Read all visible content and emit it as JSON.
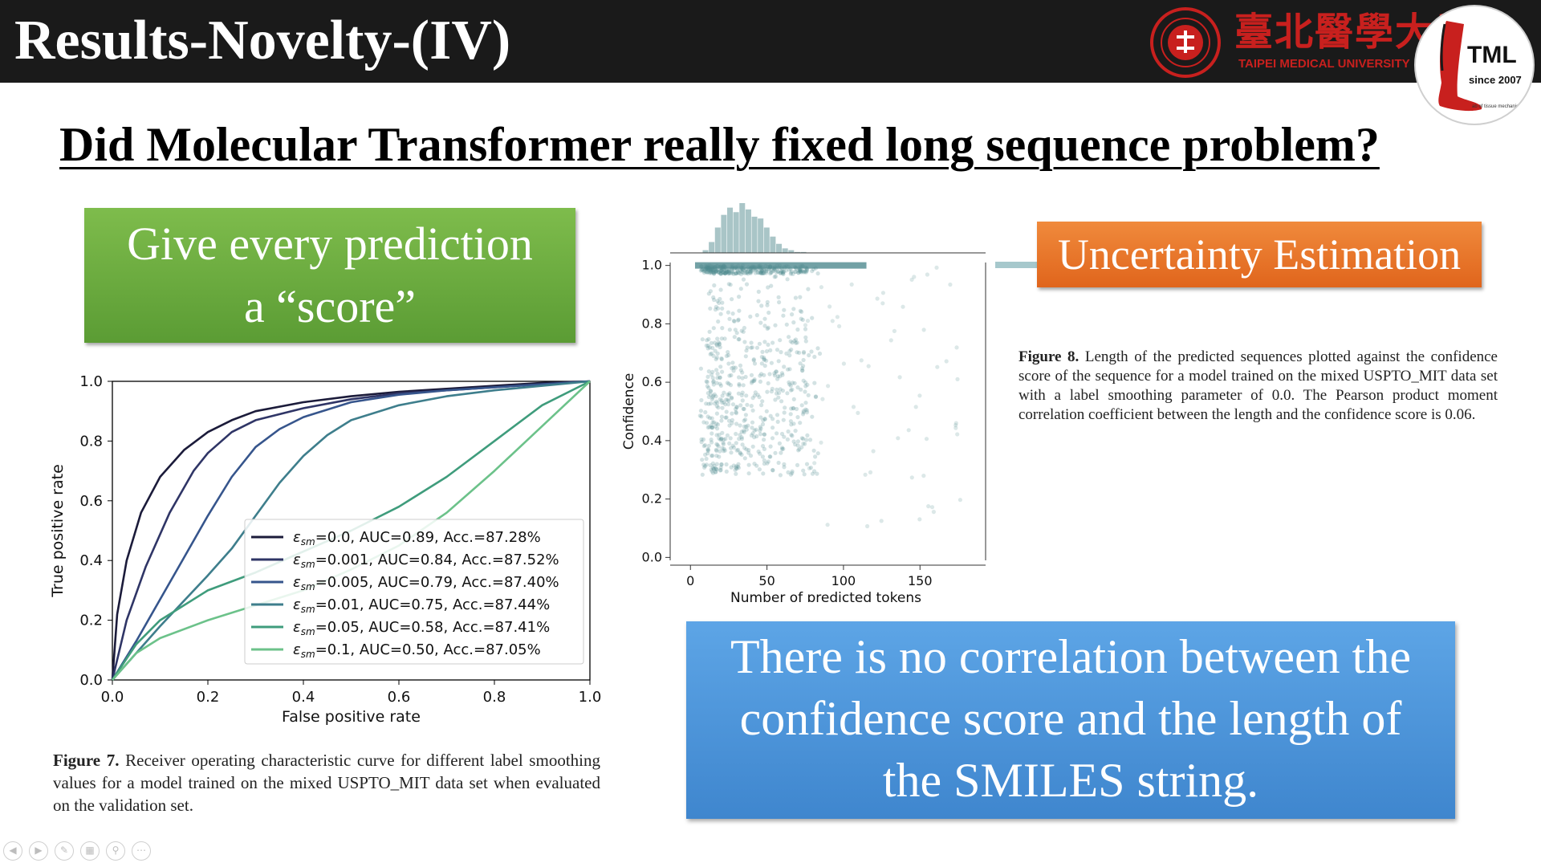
{
  "slide": {
    "title": "Results-Novelty-(IV)",
    "question": "Did Molecular Transformer really fixed long sequence problem?"
  },
  "logos": {
    "tmu_chinese": "臺北醫學大學",
    "tmu_english": "TAIPEI MEDICAL UNIVERSITY",
    "tml_name": "TML",
    "tml_since": "since 2007",
    "tml_small": "ab of tissue mechanics",
    "brand_red": "#c8201e"
  },
  "callouts": {
    "score_line1": "Give every prediction",
    "score_line2": "a “score”",
    "uncertainty": "Uncertainty Estimation",
    "conclusion_line1": "There is no correlation between the",
    "conclusion_line2": "confidence score and the length of",
    "conclusion_line3": "the SMILES string."
  },
  "captions": {
    "fig8_label": "Figure 8.",
    "fig8_text": "Length of the predicted sequences plotted against the confidence score of the sequence for a model trained on the mixed USPTO_MIT data set with a label smoothing parameter of 0.0. The Pearson product moment correlation coefficient between the length and the confidence score is 0.06.",
    "fig7_label": "Figure 7.",
    "fig7_text": "Receiver operating characteristic curve for different label smoothing values for a model trained on the mixed USPTO_MIT data set when evaluated on the validation set."
  },
  "nav_icons": [
    "back-icon",
    "forward-icon",
    "pen-icon",
    "slides-icon",
    "zoom-icon",
    "more-icon"
  ],
  "chart_data": [
    {
      "type": "line",
      "xlabel": "False positive rate",
      "ylabel": "True positive rate",
      "xlim": [
        0,
        1
      ],
      "ylim": [
        0,
        1
      ],
      "xticks": [
        "0.0",
        "0.2",
        "0.4",
        "0.6",
        "0.8",
        "1.0"
      ],
      "yticks": [
        "0.0",
        "0.2",
        "0.4",
        "0.6",
        "0.8",
        "1.0"
      ],
      "grid": false,
      "legend": "lower-right",
      "series": [
        {
          "name": "=0.0, AUC=0.89, Acc.=87.28%",
          "color": "#1b1b3a",
          "x": [
            0,
            0.01,
            0.03,
            0.06,
            0.1,
            0.15,
            0.2,
            0.25,
            0.3,
            0.4,
            0.5,
            0.6,
            0.7,
            0.8,
            0.9,
            1.0
          ],
          "y": [
            0,
            0.22,
            0.4,
            0.56,
            0.68,
            0.77,
            0.83,
            0.87,
            0.9,
            0.93,
            0.95,
            0.965,
            0.975,
            0.985,
            0.995,
            1.0
          ]
        },
        {
          "name": "=0.001, AUC=0.84, Acc.=87.52%",
          "color": "#2f3566",
          "x": [
            0,
            0.03,
            0.07,
            0.12,
            0.17,
            0.2,
            0.25,
            0.3,
            0.4,
            0.5,
            0.6,
            0.7,
            0.8,
            0.9,
            1.0
          ],
          "y": [
            0,
            0.2,
            0.38,
            0.56,
            0.7,
            0.76,
            0.83,
            0.87,
            0.91,
            0.94,
            0.96,
            0.97,
            0.98,
            0.99,
            1.0
          ]
        },
        {
          "name": "=0.005, AUC=0.79, Acc.=87.40%",
          "color": "#36558c",
          "x": [
            0,
            0.05,
            0.1,
            0.15,
            0.2,
            0.25,
            0.3,
            0.35,
            0.4,
            0.5,
            0.6,
            0.7,
            0.8,
            0.9,
            1.0
          ],
          "y": [
            0,
            0.13,
            0.27,
            0.41,
            0.55,
            0.68,
            0.78,
            0.84,
            0.88,
            0.93,
            0.955,
            0.97,
            0.98,
            0.99,
            1.0
          ]
        },
        {
          "name": "=0.01, AUC=0.75, Acc.=87.44%",
          "color": "#3e7e8c",
          "x": [
            0,
            0.05,
            0.1,
            0.2,
            0.25,
            0.3,
            0.35,
            0.4,
            0.45,
            0.5,
            0.6,
            0.7,
            0.8,
            0.9,
            1.0
          ],
          "y": [
            0,
            0.09,
            0.18,
            0.35,
            0.44,
            0.55,
            0.66,
            0.75,
            0.82,
            0.87,
            0.92,
            0.95,
            0.97,
            0.985,
            1.0
          ]
        },
        {
          "name": "=0.05, AUC=0.58, Acc.=87.41%",
          "color": "#3f9c7c",
          "x": [
            0,
            0.05,
            0.1,
            0.2,
            0.3,
            0.4,
            0.5,
            0.6,
            0.7,
            0.8,
            0.9,
            1.0
          ],
          "y": [
            0,
            0.12,
            0.2,
            0.3,
            0.36,
            0.43,
            0.5,
            0.58,
            0.68,
            0.8,
            0.92,
            1.0
          ]
        },
        {
          "name": "=0.1, AUC=0.50, Acc.=87.05%",
          "color": "#6cc28a",
          "x": [
            0,
            0.05,
            0.1,
            0.2,
            0.3,
            0.4,
            0.5,
            0.6,
            0.7,
            0.8,
            0.9,
            1.0
          ],
          "y": [
            0,
            0.09,
            0.14,
            0.2,
            0.25,
            0.3,
            0.37,
            0.45,
            0.56,
            0.7,
            0.85,
            1.0
          ]
        }
      ]
    },
    {
      "type": "scatter",
      "xlabel": "Number of predicted tokens",
      "ylabel": "Confidence",
      "xlim": [
        -8,
        185
      ],
      "ylim": [
        -0.01,
        1.01
      ],
      "xticks": [
        "0",
        "50",
        "100",
        "150"
      ],
      "yticks": [
        "0.0",
        "0.2",
        "0.4",
        "0.6",
        "0.8",
        "1.0"
      ],
      "color": "#4f8a8e",
      "histogram_x": {
        "bin_starts": [
          8,
          12,
          16,
          20,
          24,
          28,
          32,
          36,
          40,
          44,
          48,
          52,
          56,
          60,
          64,
          68,
          72
        ],
        "counts": [
          3,
          12,
          28,
          42,
          50,
          45,
          55,
          48,
          40,
          38,
          28,
          18,
          10,
          5,
          3,
          1,
          1
        ]
      }
    }
  ]
}
